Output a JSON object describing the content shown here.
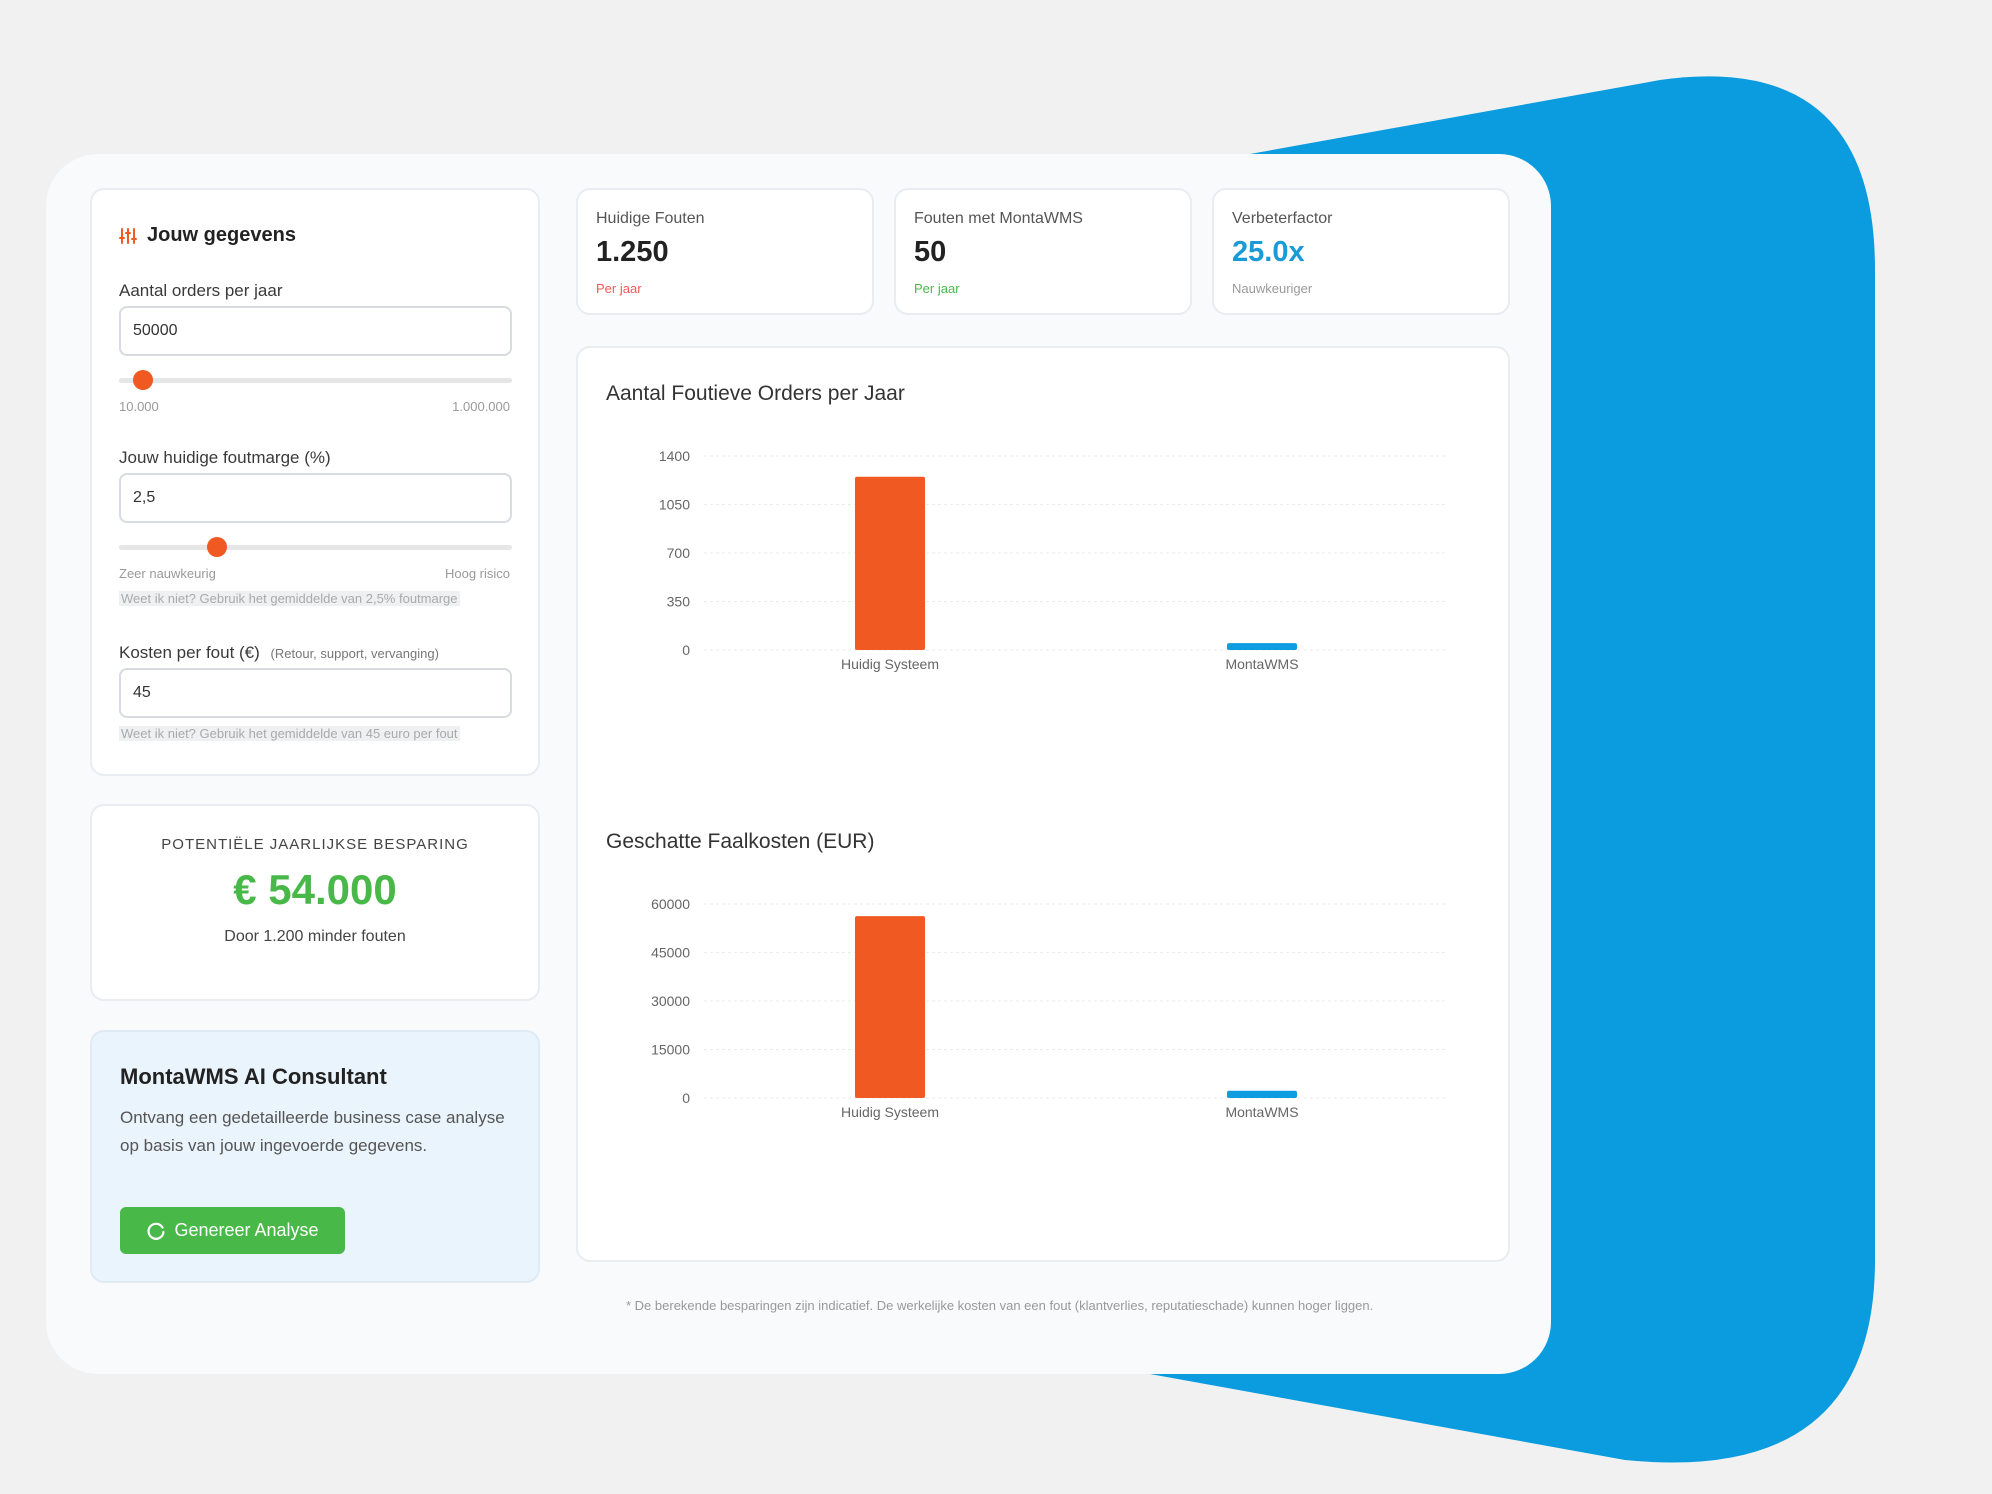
{
  "inputs": {
    "header": {
      "icon": "sliders-icon",
      "title": "Jouw gegevens"
    },
    "orders": {
      "label": "Aantal orders per jaar",
      "value": "50000",
      "min_label": "10.000",
      "max_label": "1.000.000",
      "slider_level_pct": 6
    },
    "error_margin": {
      "label": "Jouw huidige foutmarge (%)",
      "value": "2,5",
      "min_label": "Zeer nauwkeurig",
      "max_label": "Hoog risico",
      "hint": "Weet ik niet? Gebruik het gemiddelde van 2,5% foutmarge",
      "slider_level_pct": 25
    },
    "cost": {
      "label": "Kosten per fout (€)",
      "note": "(Retour, support, vervanging)",
      "value": "45",
      "hint": "Weet ik niet? Gebruik het gemiddelde van 45 euro per fout"
    }
  },
  "savings": {
    "title": "POTENTIËLE JAARLIJKSE BESPARING",
    "value": "€ 54.000",
    "sub": "Door 1.200 minder fouten"
  },
  "consultant": {
    "title": "MontaWMS AI Consultant",
    "description": "Ontvang een gedetailleerde business case analyse op basis van jouw ingevoerde gegevens.",
    "button_label": "Genereer Analyse",
    "button_icon": "spinner-icon"
  },
  "stats": [
    {
      "title": "Huidige Fouten",
      "value": "1.250",
      "sub": "Per jaar",
      "value_color": "#222222",
      "sub_color": "#f05a5a"
    },
    {
      "title": "Fouten met MontaWMS",
      "value": "50",
      "sub": "Per jaar",
      "value_color": "#222222",
      "sub_color": "#48b848"
    },
    {
      "title": "Verbeterfactor",
      "value": "25.0x",
      "sub": "Nauwkeuriger",
      "value_color": "#1a9bd7",
      "sub_color": "#9a9a9a"
    }
  ],
  "chart_data": [
    {
      "type": "bar",
      "title": "Aantal Foutieve Orders per Jaar",
      "categories": [
        "Huidig Systeem",
        "MontaWMS"
      ],
      "values": [
        1250,
        50
      ],
      "ylim": [
        0,
        1400
      ],
      "yticks": [
        "0",
        "350",
        "700",
        "1050",
        "1400"
      ],
      "colors": [
        "#f05a22",
        "#0e9de0"
      ],
      "grid": true
    },
    {
      "type": "bar",
      "title": "Geschatte Faalkosten (EUR)",
      "categories": [
        "Huidig Systeem",
        "MontaWMS"
      ],
      "values": [
        56250,
        2250
      ],
      "ylim": [
        0,
        60000
      ],
      "yticks": [
        "0",
        "15000",
        "30000",
        "45000",
        "60000"
      ],
      "colors": [
        "#f05a22",
        "#0e9de0"
      ],
      "grid": true
    }
  ],
  "footnote": "* De berekende besparingen zijn indicatief. De werkelijke kosten van een fout (klantverlies, reputatieschade) kunnen hoger liggen.",
  "colors": {
    "accent_orange": "#f05a22",
    "accent_blue": "#0e9de0",
    "accent_green": "#48b848",
    "background_blob": "#0a9cdf"
  }
}
